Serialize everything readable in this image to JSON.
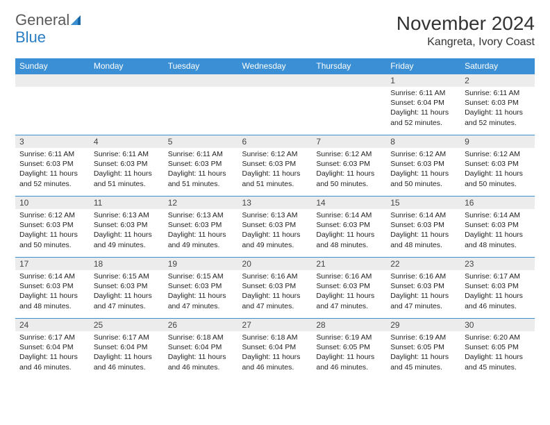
{
  "logo": {
    "text1": "General",
    "text2": "Blue"
  },
  "title": "November 2024",
  "location": "Kangreta, Ivory Coast",
  "header_bg": "#3b8fd4",
  "header_fg": "#ffffff",
  "daynum_bg": "#ececec",
  "border_color": "#3b8fd4",
  "body_font_size": 10.5,
  "weekdays": [
    "Sunday",
    "Monday",
    "Tuesday",
    "Wednesday",
    "Thursday",
    "Friday",
    "Saturday"
  ],
  "weeks": [
    [
      {
        "n": "",
        "sunrise": "",
        "sunset": "",
        "daylight": ""
      },
      {
        "n": "",
        "sunrise": "",
        "sunset": "",
        "daylight": ""
      },
      {
        "n": "",
        "sunrise": "",
        "sunset": "",
        "daylight": ""
      },
      {
        "n": "",
        "sunrise": "",
        "sunset": "",
        "daylight": ""
      },
      {
        "n": "",
        "sunrise": "",
        "sunset": "",
        "daylight": ""
      },
      {
        "n": "1",
        "sunrise": "Sunrise: 6:11 AM",
        "sunset": "Sunset: 6:04 PM",
        "daylight": "Daylight: 11 hours and 52 minutes."
      },
      {
        "n": "2",
        "sunrise": "Sunrise: 6:11 AM",
        "sunset": "Sunset: 6:03 PM",
        "daylight": "Daylight: 11 hours and 52 minutes."
      }
    ],
    [
      {
        "n": "3",
        "sunrise": "Sunrise: 6:11 AM",
        "sunset": "Sunset: 6:03 PM",
        "daylight": "Daylight: 11 hours and 52 minutes."
      },
      {
        "n": "4",
        "sunrise": "Sunrise: 6:11 AM",
        "sunset": "Sunset: 6:03 PM",
        "daylight": "Daylight: 11 hours and 51 minutes."
      },
      {
        "n": "5",
        "sunrise": "Sunrise: 6:11 AM",
        "sunset": "Sunset: 6:03 PM",
        "daylight": "Daylight: 11 hours and 51 minutes."
      },
      {
        "n": "6",
        "sunrise": "Sunrise: 6:12 AM",
        "sunset": "Sunset: 6:03 PM",
        "daylight": "Daylight: 11 hours and 51 minutes."
      },
      {
        "n": "7",
        "sunrise": "Sunrise: 6:12 AM",
        "sunset": "Sunset: 6:03 PM",
        "daylight": "Daylight: 11 hours and 50 minutes."
      },
      {
        "n": "8",
        "sunrise": "Sunrise: 6:12 AM",
        "sunset": "Sunset: 6:03 PM",
        "daylight": "Daylight: 11 hours and 50 minutes."
      },
      {
        "n": "9",
        "sunrise": "Sunrise: 6:12 AM",
        "sunset": "Sunset: 6:03 PM",
        "daylight": "Daylight: 11 hours and 50 minutes."
      }
    ],
    [
      {
        "n": "10",
        "sunrise": "Sunrise: 6:12 AM",
        "sunset": "Sunset: 6:03 PM",
        "daylight": "Daylight: 11 hours and 50 minutes."
      },
      {
        "n": "11",
        "sunrise": "Sunrise: 6:13 AM",
        "sunset": "Sunset: 6:03 PM",
        "daylight": "Daylight: 11 hours and 49 minutes."
      },
      {
        "n": "12",
        "sunrise": "Sunrise: 6:13 AM",
        "sunset": "Sunset: 6:03 PM",
        "daylight": "Daylight: 11 hours and 49 minutes."
      },
      {
        "n": "13",
        "sunrise": "Sunrise: 6:13 AM",
        "sunset": "Sunset: 6:03 PM",
        "daylight": "Daylight: 11 hours and 49 minutes."
      },
      {
        "n": "14",
        "sunrise": "Sunrise: 6:14 AM",
        "sunset": "Sunset: 6:03 PM",
        "daylight": "Daylight: 11 hours and 48 minutes."
      },
      {
        "n": "15",
        "sunrise": "Sunrise: 6:14 AM",
        "sunset": "Sunset: 6:03 PM",
        "daylight": "Daylight: 11 hours and 48 minutes."
      },
      {
        "n": "16",
        "sunrise": "Sunrise: 6:14 AM",
        "sunset": "Sunset: 6:03 PM",
        "daylight": "Daylight: 11 hours and 48 minutes."
      }
    ],
    [
      {
        "n": "17",
        "sunrise": "Sunrise: 6:14 AM",
        "sunset": "Sunset: 6:03 PM",
        "daylight": "Daylight: 11 hours and 48 minutes."
      },
      {
        "n": "18",
        "sunrise": "Sunrise: 6:15 AM",
        "sunset": "Sunset: 6:03 PM",
        "daylight": "Daylight: 11 hours and 47 minutes."
      },
      {
        "n": "19",
        "sunrise": "Sunrise: 6:15 AM",
        "sunset": "Sunset: 6:03 PM",
        "daylight": "Daylight: 11 hours and 47 minutes."
      },
      {
        "n": "20",
        "sunrise": "Sunrise: 6:16 AM",
        "sunset": "Sunset: 6:03 PM",
        "daylight": "Daylight: 11 hours and 47 minutes."
      },
      {
        "n": "21",
        "sunrise": "Sunrise: 6:16 AM",
        "sunset": "Sunset: 6:03 PM",
        "daylight": "Daylight: 11 hours and 47 minutes."
      },
      {
        "n": "22",
        "sunrise": "Sunrise: 6:16 AM",
        "sunset": "Sunset: 6:03 PM",
        "daylight": "Daylight: 11 hours and 47 minutes."
      },
      {
        "n": "23",
        "sunrise": "Sunrise: 6:17 AM",
        "sunset": "Sunset: 6:03 PM",
        "daylight": "Daylight: 11 hours and 46 minutes."
      }
    ],
    [
      {
        "n": "24",
        "sunrise": "Sunrise: 6:17 AM",
        "sunset": "Sunset: 6:04 PM",
        "daylight": "Daylight: 11 hours and 46 minutes."
      },
      {
        "n": "25",
        "sunrise": "Sunrise: 6:17 AM",
        "sunset": "Sunset: 6:04 PM",
        "daylight": "Daylight: 11 hours and 46 minutes."
      },
      {
        "n": "26",
        "sunrise": "Sunrise: 6:18 AM",
        "sunset": "Sunset: 6:04 PM",
        "daylight": "Daylight: 11 hours and 46 minutes."
      },
      {
        "n": "27",
        "sunrise": "Sunrise: 6:18 AM",
        "sunset": "Sunset: 6:04 PM",
        "daylight": "Daylight: 11 hours and 46 minutes."
      },
      {
        "n": "28",
        "sunrise": "Sunrise: 6:19 AM",
        "sunset": "Sunset: 6:05 PM",
        "daylight": "Daylight: 11 hours and 46 minutes."
      },
      {
        "n": "29",
        "sunrise": "Sunrise: 6:19 AM",
        "sunset": "Sunset: 6:05 PM",
        "daylight": "Daylight: 11 hours and 45 minutes."
      },
      {
        "n": "30",
        "sunrise": "Sunrise: 6:20 AM",
        "sunset": "Sunset: 6:05 PM",
        "daylight": "Daylight: 11 hours and 45 minutes."
      }
    ]
  ]
}
